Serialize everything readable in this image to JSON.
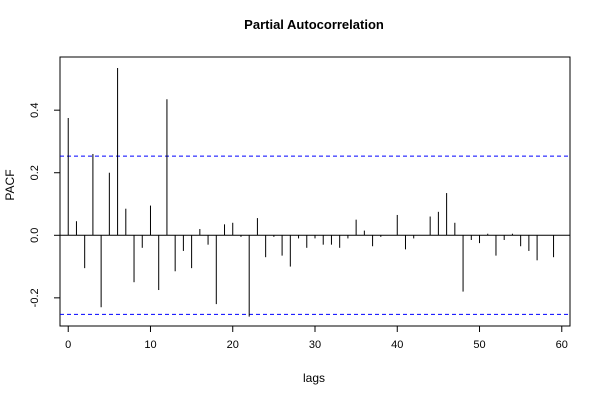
{
  "chart_data": {
    "type": "bar",
    "title": "Partial Autocorrelation",
    "xlabel": "lags",
    "ylabel": "PACF",
    "xlim": [
      -1,
      61
    ],
    "ylim": [
      -0.29,
      0.57
    ],
    "xticks": [
      0,
      10,
      20,
      30,
      40,
      50,
      60
    ],
    "xtick_labels": [
      "0",
      "10",
      "20",
      "30",
      "40",
      "50",
      "60"
    ],
    "yticks": [
      -0.2,
      0.0,
      0.2,
      0.4
    ],
    "ytick_labels": [
      "-0.2",
      "0.0",
      "0.2",
      "0.4"
    ],
    "confidence_bounds": [
      0.253,
      -0.253
    ],
    "x": [
      0,
      1,
      2,
      3,
      4,
      5,
      6,
      7,
      8,
      9,
      10,
      11,
      12,
      13,
      14,
      15,
      16,
      17,
      18,
      19,
      20,
      21,
      22,
      23,
      24,
      25,
      26,
      27,
      28,
      29,
      30,
      31,
      32,
      33,
      34,
      35,
      36,
      37,
      38,
      39,
      40,
      41,
      42,
      43,
      44,
      45,
      46,
      47,
      48,
      49,
      50,
      51,
      52,
      53,
      54,
      55,
      56,
      57,
      58,
      59
    ],
    "values": [
      0.375,
      0.045,
      -0.105,
      0.26,
      -0.23,
      0.2,
      0.535,
      0.085,
      -0.15,
      -0.04,
      0.095,
      -0.175,
      0.435,
      -0.115,
      -0.05,
      -0.105,
      0.02,
      -0.03,
      -0.22,
      0.035,
      0.04,
      -0.005,
      -0.26,
      0.055,
      -0.07,
      -0.005,
      -0.065,
      -0.1,
      -0.01,
      -0.04,
      -0.01,
      -0.03,
      -0.03,
      -0.04,
      -0.01,
      0.05,
      0.015,
      -0.035,
      -0.005,
      0.0,
      0.065,
      -0.045,
      -0.01,
      0.0,
      0.06,
      0.075,
      0.135,
      0.04,
      -0.18,
      -0.015,
      -0.025,
      0.005,
      -0.065,
      -0.015,
      0.005,
      -0.035,
      -0.05,
      -0.08,
      0.0,
      -0.07
    ],
    "grid": false,
    "colors": {
      "bars": "#000000",
      "bounds": "#0000ff",
      "axis": "#000000"
    }
  }
}
